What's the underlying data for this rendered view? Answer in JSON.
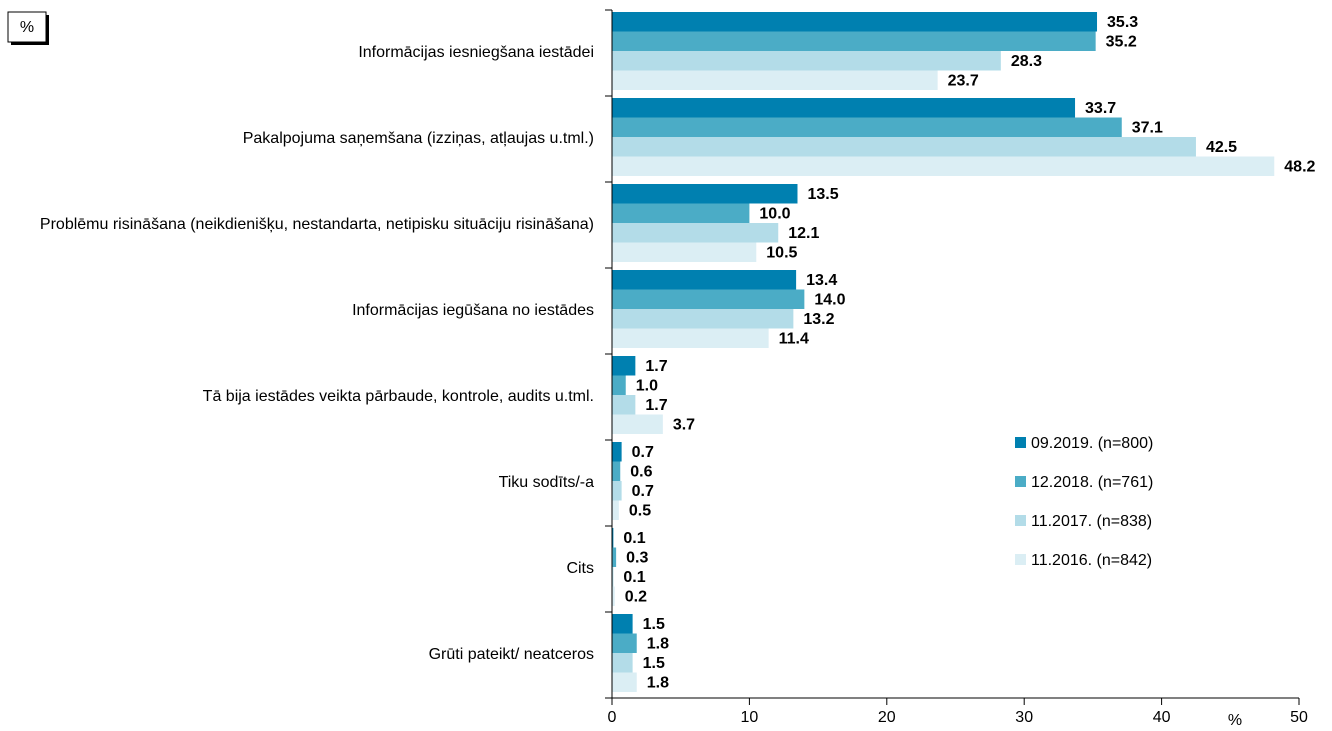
{
  "chart_data": {
    "type": "bar",
    "orientation": "horizontal",
    "unit_label": "%",
    "xlabel": "%",
    "categories": [
      "Informācijas iesniegšana iestādei",
      "Pakalpojuma saņemšana (izziņas, atļaujas u.tml.)",
      "Problēmu risināšana (neikdienišķu, nestandarta, netipisku situāciju risināšana)",
      "Informācijas iegūšana no iestādes",
      "Tā bija iestādes veikta pārbaude, kontrole, audits u.tml.",
      "Tiku sodīts/-a",
      "Cits",
      "Grūti pateikt/ neatceros"
    ],
    "series": [
      {
        "name": "09.2019. (n=800)",
        "color": "#0080b0",
        "values": [
          35.3,
          33.7,
          13.5,
          13.4,
          1.7,
          0.7,
          0.1,
          1.5
        ],
        "value_labels": [
          "35.3",
          "33.7",
          "13.5",
          "13.4",
          "1.7",
          "0.7",
          "0.1",
          "1.5"
        ]
      },
      {
        "name": "12.2018. (n=761)",
        "color": "#4bacc6",
        "values": [
          35.2,
          37.1,
          10.0,
          14.0,
          1.0,
          0.6,
          0.3,
          1.8
        ],
        "value_labels": [
          "35.2",
          "37.1",
          "10.0",
          "14.0",
          "1.0",
          "0.6",
          "0.3",
          "1.8"
        ]
      },
      {
        "name": "11.2017. (n=838)",
        "color": "#b3dce8",
        "values": [
          28.3,
          42.5,
          12.1,
          13.2,
          1.7,
          0.7,
          0.1,
          1.5
        ],
        "value_labels": [
          "28.3",
          "42.5",
          "12.1",
          "13.2",
          "1.7",
          "0.7",
          "0.1",
          "1.5"
        ]
      },
      {
        "name": "11.2016. (n=842)",
        "color": "#dbeef4",
        "values": [
          23.7,
          48.2,
          10.5,
          11.4,
          3.7,
          0.5,
          0.2,
          1.8
        ],
        "value_labels": [
          "23.7",
          "48.2",
          "10.5",
          "11.4",
          "3.7",
          "0.5",
          "0.2",
          "1.8"
        ]
      }
    ],
    "xlim": [
      0,
      50
    ],
    "xticks": [
      0,
      10,
      20,
      30,
      40,
      50
    ],
    "grid": false,
    "legend": "lower right"
  }
}
